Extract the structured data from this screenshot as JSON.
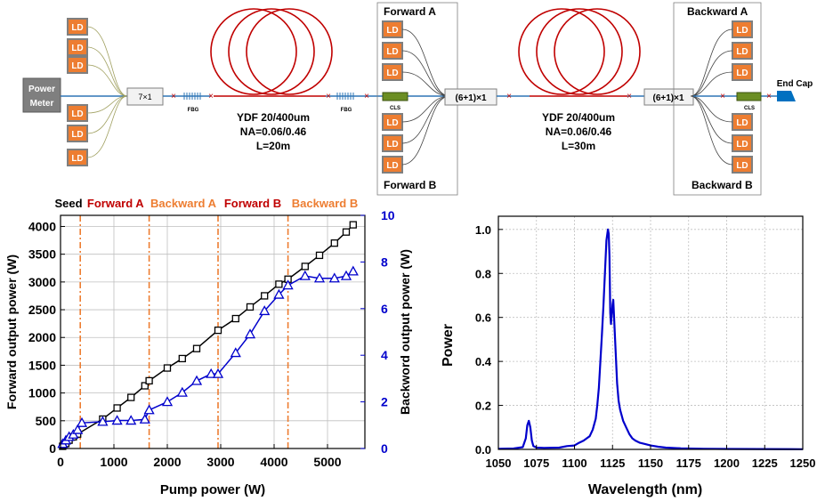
{
  "schematic": {
    "power_meter": "Power Meter",
    "combiner_7x1": "7×1",
    "ld_label": "LD",
    "fbg": "FBG",
    "cls": "CLS",
    "combiner_6p1": "(6+1)×1",
    "fiber1": {
      "line1": "YDF 20/400um",
      "line2": "NA=0.06/0.46",
      "line3": "L=20m"
    },
    "fiber2": {
      "line1": "YDF 20/400um",
      "line2": "NA=0.06/0.46",
      "line3": "L=30m"
    },
    "forward_a": "Forward A",
    "forward_b": "Forward B",
    "backward_a": "Backward A",
    "backward_b": "Backward B",
    "end_cap": "End Cap",
    "colors": {
      "fiber_red": "#c00000",
      "passive_blue": "#2e75b6",
      "ld_orange": "#ed7d31",
      "meter_gray": "#7f7f7f",
      "cls_green": "#6b8e23",
      "endcap_blue": "#0070c0"
    }
  },
  "chart_data": [
    {
      "type": "line",
      "xlabel": "Pump power (W)",
      "ylabel": "Forward output power (W)",
      "y2label": "Backword output power (W)",
      "xlim": [
        0,
        5700
      ],
      "ylim": [
        0,
        4200
      ],
      "y2lim": [
        0,
        10
      ],
      "xticks": [
        0,
        1000,
        2000,
        3000,
        4000,
        5000
      ],
      "yticks": [
        0,
        500,
        1000,
        1500,
        2000,
        2500,
        3000,
        3500,
        4000
      ],
      "y2ticks": [
        0,
        2,
        4,
        6,
        8,
        10
      ],
      "grid": true,
      "stage_labels": [
        {
          "label": "Seed",
          "color": "#000000",
          "x": 150
        },
        {
          "label": "Forward A",
          "color": "#c00000",
          "x": 1030
        },
        {
          "label": "Backward A",
          "color": "#ed7d31",
          "x": 2300
        },
        {
          "label": "Forward B",
          "color": "#c00000",
          "x": 3600
        },
        {
          "label": "Backward B",
          "color": "#ed7d31",
          "x": 4950
        }
      ],
      "stage_boundaries": [
        370,
        1660,
        2950,
        4260
      ],
      "series": [
        {
          "color": "#000000",
          "marker": "square",
          "axis": "left",
          "x": [
            40,
            100,
            160,
            240,
            320,
            790,
            1060,
            1320,
            1580,
            1660,
            2000,
            2280,
            2550,
            2950,
            3280,
            3550,
            3820,
            4090,
            4260,
            4580,
            4850,
            5130,
            5350,
            5480
          ],
          "y": [
            40,
            90,
            150,
            210,
            260,
            530,
            730,
            920,
            1130,
            1220,
            1450,
            1620,
            1800,
            2130,
            2340,
            2550,
            2750,
            2960,
            3050,
            3280,
            3480,
            3700,
            3900,
            4030
          ]
        },
        {
          "color": "#0000cc",
          "marker": "triangle",
          "axis": "right",
          "x": [
            40,
            100,
            160,
            240,
            320,
            400,
            790,
            1060,
            1320,
            1580,
            1660,
            2000,
            2280,
            2550,
            2820,
            2950,
            3280,
            3550,
            3820,
            4090,
            4260,
            4580,
            4850,
            5130,
            5350,
            5480
          ],
          "y": [
            0.2,
            0.35,
            0.5,
            0.6,
            0.8,
            1.1,
            1.15,
            1.2,
            1.2,
            1.25,
            1.65,
            2.0,
            2.4,
            2.9,
            3.2,
            3.2,
            4.1,
            4.9,
            5.9,
            6.6,
            7.0,
            7.4,
            7.3,
            7.3,
            7.4,
            7.6
          ]
        }
      ]
    },
    {
      "type": "line",
      "xlabel": "Wavelength (nm)",
      "ylabel": "Power",
      "xlim": [
        1050,
        1250
      ],
      "ylim": [
        0,
        1.0
      ],
      "xticks": [
        1050,
        1075,
        1100,
        1125,
        1150,
        1175,
        1200,
        1225,
        1250
      ],
      "yticks": [
        0.0,
        0.2,
        0.4,
        0.6,
        0.8,
        1.0
      ],
      "grid": true,
      "series": [
        {
          "color": "#0000cc",
          "x": [
            1050,
            1060,
            1066,
            1068,
            1069,
            1070,
            1071,
            1072,
            1073,
            1075,
            1080,
            1090,
            1095,
            1100,
            1103,
            1106,
            1108,
            1110,
            1112,
            1114,
            1115,
            1116,
            1117,
            1118,
            1119,
            1120,
            1121,
            1122,
            1122.5,
            1123,
            1123.5,
            1124,
            1125,
            1125.5,
            1126,
            1127,
            1128,
            1129,
            1130,
            1132,
            1134,
            1136,
            1138,
            1140,
            1143,
            1146,
            1150,
            1155,
            1160,
            1170,
            1185,
            1200,
            1250
          ],
          "y": [
            0.003,
            0.004,
            0.01,
            0.05,
            0.11,
            0.13,
            0.1,
            0.04,
            0.015,
            0.008,
            0.007,
            0.008,
            0.015,
            0.018,
            0.03,
            0.04,
            0.05,
            0.06,
            0.09,
            0.14,
            0.2,
            0.28,
            0.4,
            0.52,
            0.65,
            0.8,
            0.95,
            1.0,
            0.98,
            0.88,
            0.62,
            0.57,
            0.66,
            0.68,
            0.6,
            0.45,
            0.3,
            0.22,
            0.18,
            0.13,
            0.1,
            0.07,
            0.05,
            0.04,
            0.03,
            0.025,
            0.018,
            0.012,
            0.008,
            0.005,
            0.003,
            0.002,
            0.001
          ]
        }
      ]
    }
  ]
}
